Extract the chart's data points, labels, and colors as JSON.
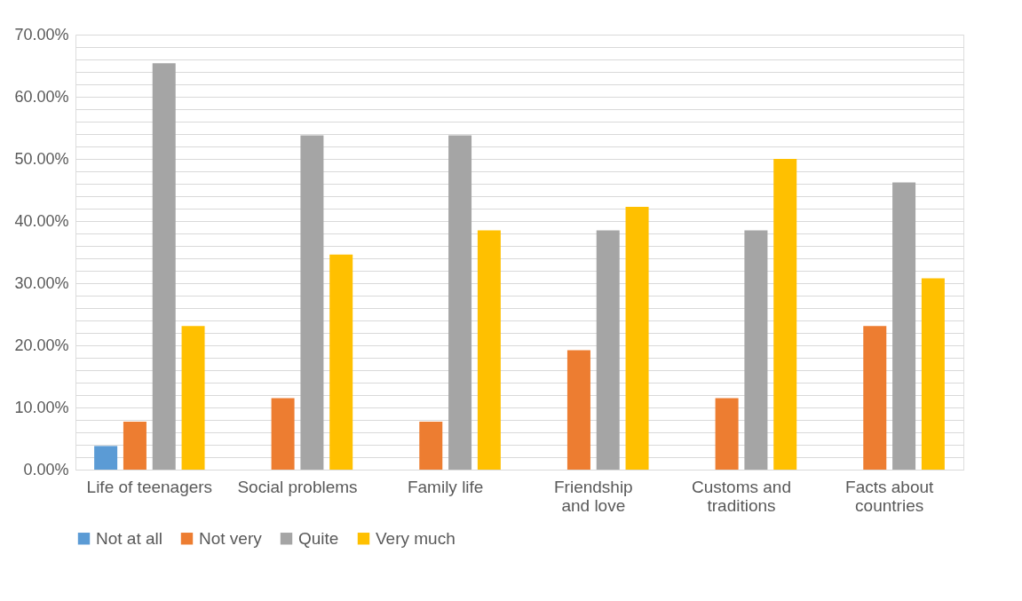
{
  "chart_data": {
    "type": "bar",
    "categories": [
      "Life of teenagers",
      "Social problems",
      "Family life",
      "Friendship and love",
      "Customs and traditions",
      "Facts about countries"
    ],
    "series": [
      {
        "name": "Not at all",
        "color": "#5b9bd5",
        "values": [
          3.8,
          0,
          0,
          0,
          0,
          0
        ]
      },
      {
        "name": "Not very",
        "color": "#ed7d31",
        "values": [
          7.7,
          11.5,
          7.7,
          19.2,
          11.5,
          23.1
        ]
      },
      {
        "name": "Quite",
        "color": "#a5a5a5",
        "values": [
          65.4,
          53.8,
          53.8,
          38.5,
          38.5,
          46.2
        ]
      },
      {
        "name": "Very much",
        "color": "#ffc000",
        "values": [
          23.1,
          34.6,
          38.5,
          42.3,
          50.0,
          30.8
        ]
      }
    ],
    "ylim": [
      0,
      70
    ],
    "yticks": [
      {
        "value": 0,
        "label": "0.00%"
      },
      {
        "value": 2,
        "label": null
      },
      {
        "value": 4,
        "label": null
      },
      {
        "value": 6,
        "label": null
      },
      {
        "value": 8,
        "label": null
      },
      {
        "value": 10,
        "label": "10.00%"
      },
      {
        "value": 12,
        "label": null
      },
      {
        "value": 14,
        "label": null
      },
      {
        "value": 16,
        "label": null
      },
      {
        "value": 18,
        "label": null
      },
      {
        "value": 20,
        "label": "20.00%"
      },
      {
        "value": 22,
        "label": null
      },
      {
        "value": 24,
        "label": null
      },
      {
        "value": 26,
        "label": null
      },
      {
        "value": 28,
        "label": null
      },
      {
        "value": 30,
        "label": "30.00%"
      },
      {
        "value": 32,
        "label": null
      },
      {
        "value": 34,
        "label": null
      },
      {
        "value": 36,
        "label": null
      },
      {
        "value": 38,
        "label": null
      },
      {
        "value": 40,
        "label": "40.00%"
      },
      {
        "value": 42,
        "label": null
      },
      {
        "value": 44,
        "label": null
      },
      {
        "value": 46,
        "label": null
      },
      {
        "value": 48,
        "label": null
      },
      {
        "value": 50,
        "label": "50.00%"
      },
      {
        "value": 52,
        "label": null
      },
      {
        "value": 54,
        "label": null
      },
      {
        "value": 56,
        "label": null
      },
      {
        "value": 58,
        "label": null
      },
      {
        "value": 60,
        "label": "60.00%"
      },
      {
        "value": 62,
        "label": null
      },
      {
        "value": 64,
        "label": null
      },
      {
        "value": 66,
        "label": null
      },
      {
        "value": 68,
        "label": null
      },
      {
        "value": 70,
        "label": "70.00%"
      }
    ],
    "grid": "y",
    "legend": "bottom"
  }
}
